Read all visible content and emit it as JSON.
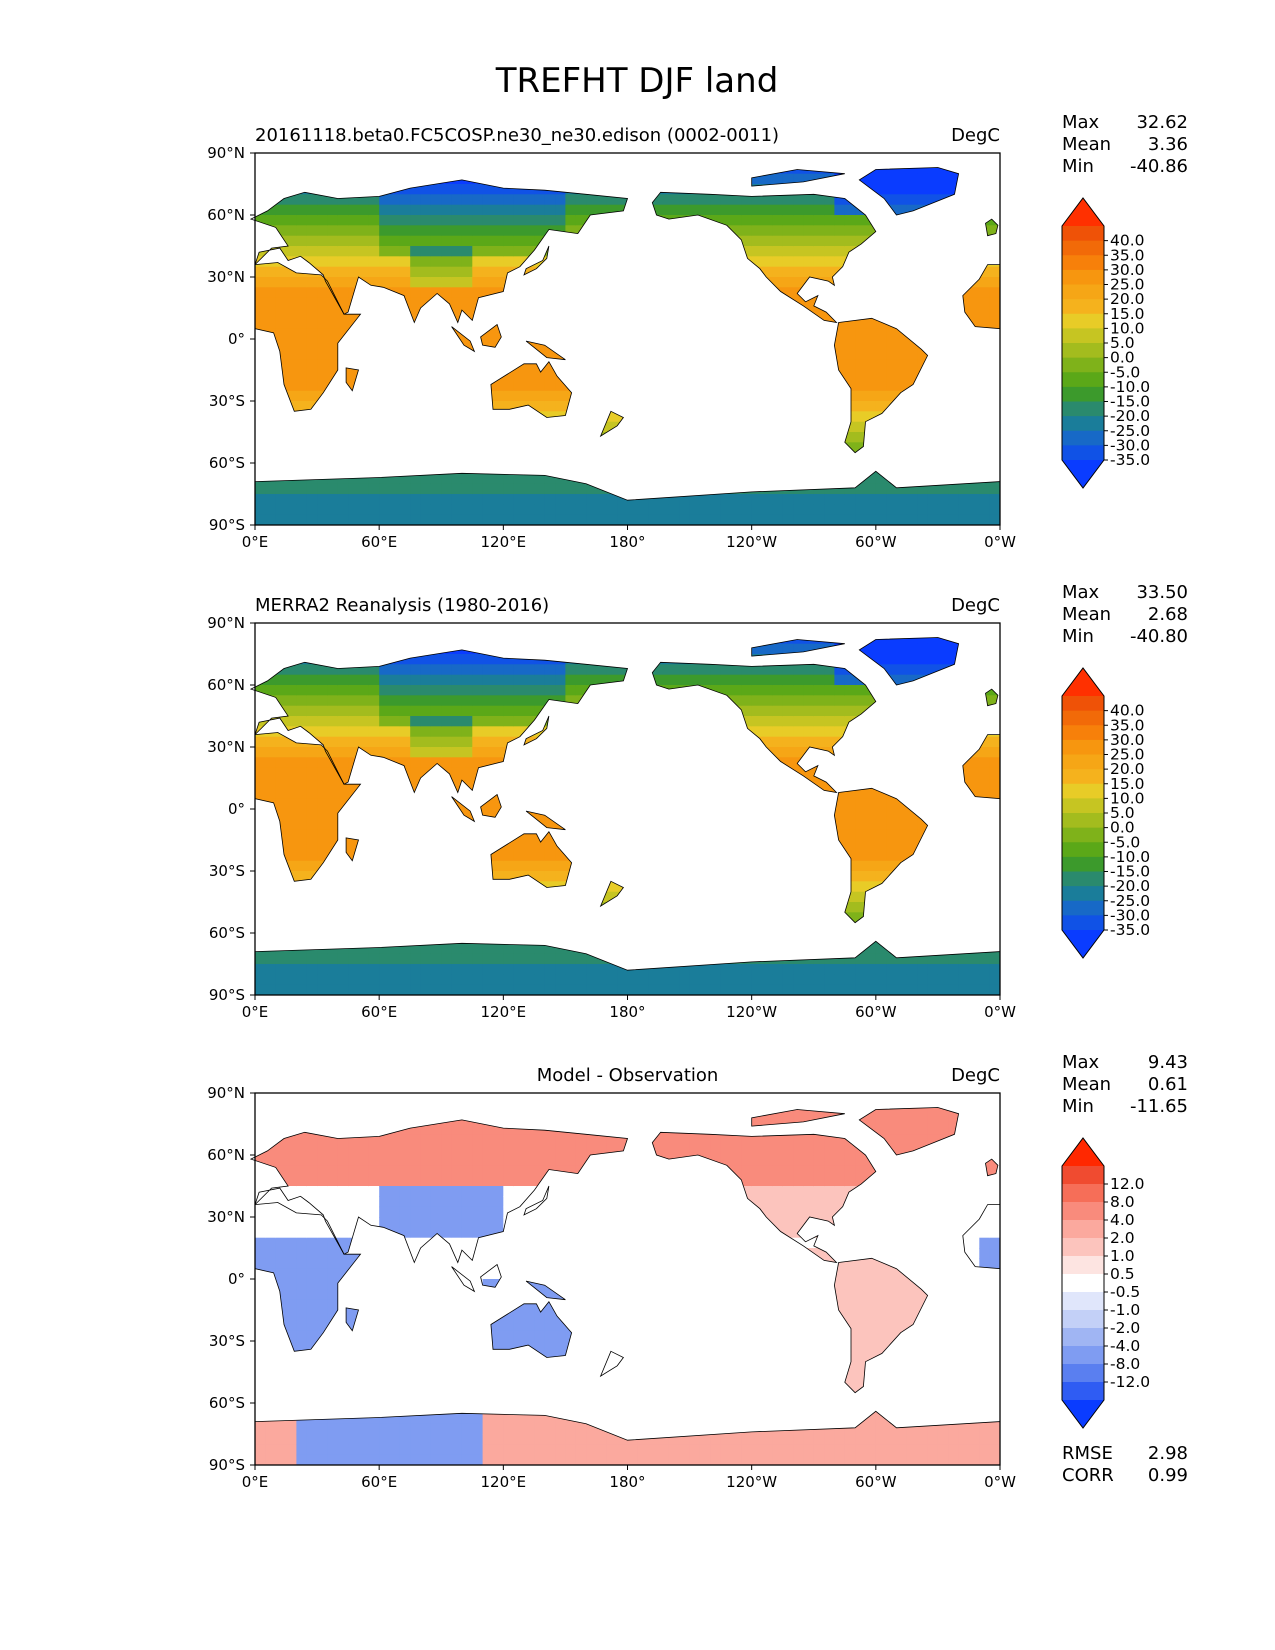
{
  "title": "TREFHT DJF land",
  "lat_ticks": [
    "90°N",
    "60°N",
    "30°N",
    "0°",
    "30°S",
    "60°S",
    "90°S"
  ],
  "lon_ticks": [
    "0°E",
    "60°E",
    "120°E",
    "180°",
    "120°W",
    "60°W",
    "0°W"
  ],
  "colors": {
    "temperature": [
      "#0a3cff",
      "#1052e6",
      "#1769c7",
      "#1a7d9a",
      "#2a8a6d",
      "#3c9a2c",
      "#5ba818",
      "#7fb21a",
      "#a3bc1e",
      "#c6c522",
      "#e8cc27",
      "#f5b21d",
      "#f6a616",
      "#f7960f",
      "#f7800a",
      "#f26a08",
      "#ef5207",
      "#ff3000"
    ],
    "difference": [
      "#0a3cff",
      "#2f5cf3",
      "#5a7ff0",
      "#7f9cf2",
      "#a0b5f3",
      "#c3d0f7",
      "#e0e6fb",
      "#ffffff",
      "#fde4e1",
      "#fcc4bd",
      "#fba99e",
      "#f98b7c",
      "#f66e58",
      "#f04b30",
      "#ff2800"
    ],
    "land_border": "#000000",
    "background": "#ffffff"
  },
  "panels": [
    {
      "id": "model",
      "left_title": "20161118.beta0.FC5COSP.ne30_ne30.edison (0002-0011)",
      "center_title": "",
      "units": "DegC",
      "stats": [
        {
          "label": "Max",
          "value": "32.62"
        },
        {
          "label": "Mean",
          "value": "3.36"
        },
        {
          "label": "Min",
          "value": "-40.86"
        }
      ],
      "colorbar": {
        "scheme": "temperature",
        "labels": [
          "40.0",
          "35.0",
          "30.0",
          "25.0",
          "20.0",
          "15.0",
          "10.0",
          "5.0",
          "0.0",
          "-5.0",
          "-10.0",
          "-15.0",
          "-20.0",
          "-25.0",
          "-30.0",
          "-35.0"
        ]
      },
      "metrics": []
    },
    {
      "id": "obs",
      "left_title": "MERRA2 Reanalysis (1980-2016)",
      "center_title": "",
      "units": "DegC",
      "stats": [
        {
          "label": "Max",
          "value": "33.50"
        },
        {
          "label": "Mean",
          "value": "2.68"
        },
        {
          "label": "Min",
          "value": "-40.80"
        }
      ],
      "colorbar": {
        "scheme": "temperature",
        "labels": [
          "40.0",
          "35.0",
          "30.0",
          "25.0",
          "20.0",
          "15.0",
          "10.0",
          "5.0",
          "0.0",
          "-5.0",
          "-10.0",
          "-15.0",
          "-20.0",
          "-25.0",
          "-30.0",
          "-35.0"
        ]
      },
      "metrics": []
    },
    {
      "id": "diff",
      "left_title": "",
      "center_title": "Model - Observation",
      "units": "DegC",
      "stats": [
        {
          "label": "Max",
          "value": "9.43"
        },
        {
          "label": "Mean",
          "value": "0.61"
        },
        {
          "label": "Min",
          "value": "-11.65"
        }
      ],
      "colorbar": {
        "scheme": "difference",
        "labels": [
          "12.0",
          "8.0",
          "4.0",
          "2.0",
          "1.0",
          "0.5",
          "-0.5",
          "-1.0",
          "-2.0",
          "-4.0",
          "-8.0",
          "-12.0"
        ]
      },
      "metrics": [
        {
          "label": "RMSE",
          "value": "2.98"
        },
        {
          "label": "CORR",
          "value": "0.99"
        }
      ]
    }
  ]
}
